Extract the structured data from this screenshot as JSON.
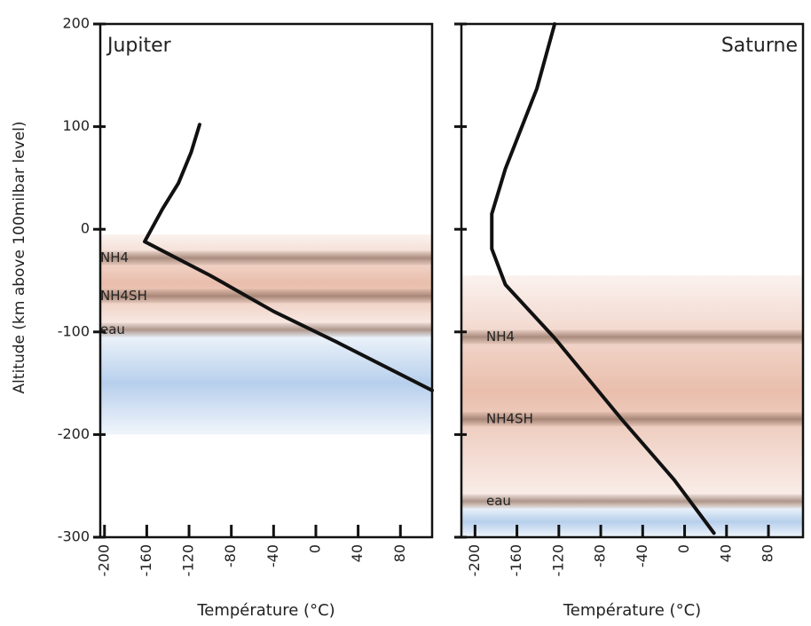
{
  "chart_data": [
    {
      "type": "line",
      "title": "Jupiter",
      "x_label": "Température (°C)",
      "y_label": "Altitude (km above 100milbar level)",
      "xlim": [
        -204,
        110
      ],
      "ylim": [
        -300,
        200
      ],
      "xticks": [
        -200,
        -160,
        -120,
        -80,
        -40,
        0,
        40,
        80
      ],
      "yticks": [
        200,
        100,
        0,
        -100,
        -200,
        -300
      ],
      "ytick_labels": true,
      "series": [
        {
          "color": "#111111",
          "x": [
            -110,
            -118,
            -130,
            -145,
            -162,
            -100,
            -40,
            20,
            110
          ],
          "values": [
            102,
            75,
            45,
            20,
            -12,
            -45,
            -80,
            -110,
            -157
          ]
        }
      ],
      "bands": [
        {
          "color": "#e2a890",
          "from": -5,
          "to": -100
        },
        {
          "color": "#9fbfe6",
          "from": -100,
          "to": -200
        }
      ],
      "layers": [
        {
          "label": "NH4",
          "altitude": -28
        },
        {
          "label": "NH4SH",
          "altitude": -65
        },
        {
          "label": "eau",
          "altitude": -98
        }
      ]
    },
    {
      "type": "line",
      "title": "Saturne",
      "x_label": "Température (°C)",
      "xlim": [
        -213,
        113
      ],
      "ylim": [
        -300,
        200
      ],
      "xticks": [
        -200,
        -160,
        -120,
        -80,
        -40,
        0,
        40,
        80
      ],
      "yticks": [
        200,
        100,
        0,
        -100,
        -200,
        -300
      ],
      "ytick_labels": false,
      "series": [
        {
          "color": "#111111",
          "x": [
            -124,
            -141,
            -171,
            -184,
            -184,
            -171,
            -124,
            -61,
            -10,
            28
          ],
          "values": [
            200,
            137,
            59,
            15,
            -19,
            -54,
            -106,
            -184,
            -244,
            -296
          ]
        }
      ],
      "bands": [
        {
          "color": "#e2a890",
          "from": -45,
          "to": -270
        },
        {
          "color": "#9fbfe6",
          "from": -270,
          "to": -300
        }
      ],
      "layers": [
        {
          "label": "NH4",
          "altitude": -105
        },
        {
          "label": "NH4SH",
          "altitude": -185
        },
        {
          "label": "eau",
          "altitude": -265
        }
      ]
    }
  ]
}
